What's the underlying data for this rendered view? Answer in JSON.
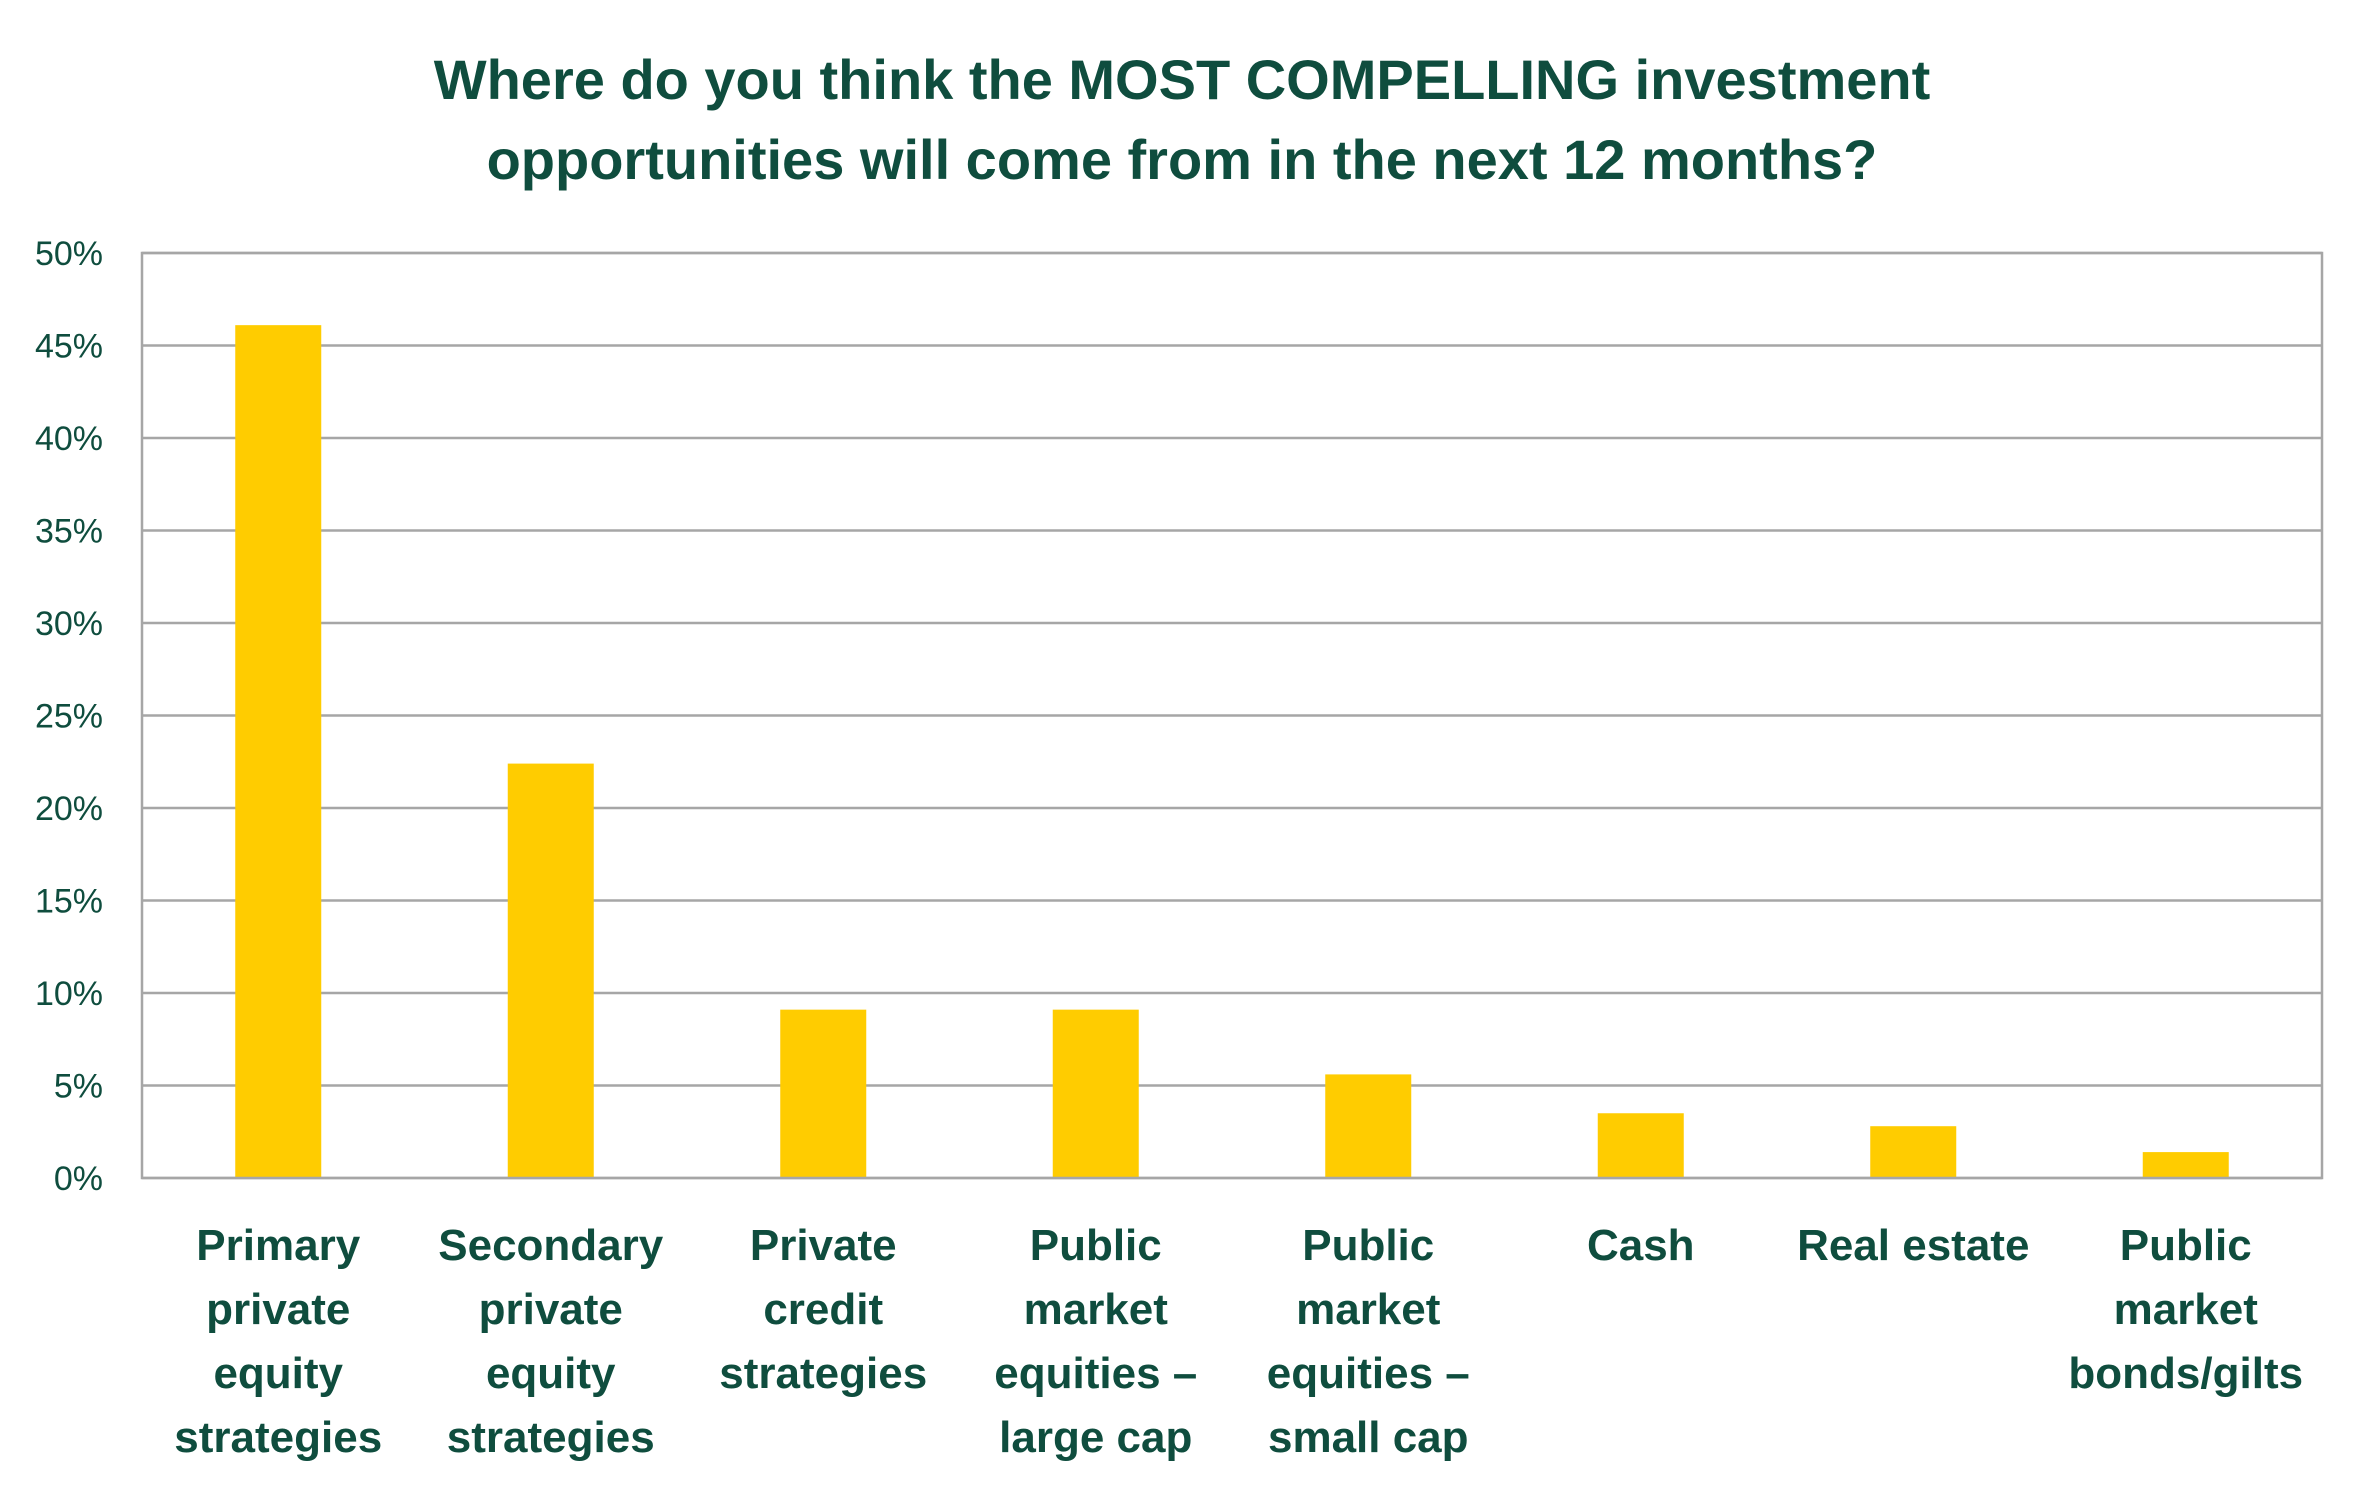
{
  "chart_data": {
    "type": "bar",
    "title": "Where do you think the MOST COMPELLING investment opportunities will come from in the next 12 months?",
    "title_lines": [
      "Where do you think the MOST COMPELLING investment",
      "opportunities will come from in the next 12 months?"
    ],
    "categories": [
      "Primary private equity strategies",
      "Secondary private equity strategies",
      "Private credit strategies",
      "Public market equities – large cap",
      "Public market equities – small cap",
      "Cash",
      "Real estate",
      "Public market bonds/gilts"
    ],
    "category_lines": [
      [
        "Primary",
        "private",
        "equity",
        "strategies"
      ],
      [
        "Secondary",
        "private",
        "equity",
        "strategies"
      ],
      [
        "Private",
        "credit",
        "strategies"
      ],
      [
        "Public",
        "market",
        "equities –",
        "large cap"
      ],
      [
        "Public",
        "market",
        "equities –",
        "small cap"
      ],
      [
        "Cash"
      ],
      [
        "Real estate"
      ],
      [
        "Public",
        "market",
        "bonds/gilts"
      ]
    ],
    "values": [
      46.1,
      22.4,
      9.1,
      9.1,
      5.6,
      3.5,
      2.8,
      1.4
    ],
    "ylim": [
      0,
      50
    ],
    "y_ticks": [
      0,
      5,
      10,
      15,
      20,
      25,
      30,
      35,
      40,
      45,
      50
    ],
    "y_tick_labels": [
      "0%",
      "5%",
      "10%",
      "15%",
      "20%",
      "25%",
      "30%",
      "35%",
      "40%",
      "45%",
      "50%"
    ],
    "xlabel": "",
    "ylabel": "",
    "grid": true,
    "legend": "none",
    "colors": {
      "bar": "#ffcc00",
      "grid": "#a6a6a6",
      "text": "#0f4d3e"
    }
  }
}
